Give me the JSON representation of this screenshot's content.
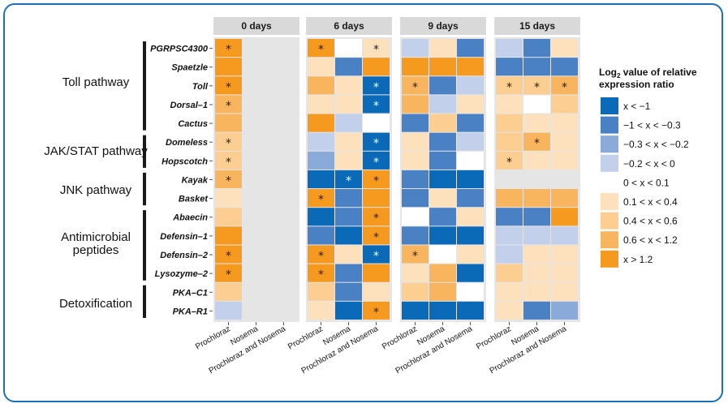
{
  "chart_data": {
    "type": "heatmap",
    "title": "",
    "panels": [
      "0 days",
      "6 days",
      "9 days",
      "15 days"
    ],
    "columns": [
      "Prochloraz",
      "Nosema",
      "Prochloraz and Nosema"
    ],
    "rows": [
      "PGRPSC4300",
      "Spaetzle",
      "Toll",
      "Dorsal–1",
      "Cactus",
      "Domeless",
      "Hopscotch",
      "Kayak",
      "Basket",
      "Abaecin",
      "Defensin–1",
      "Defensin–2",
      "Lysozyme–2",
      "PKA–C1",
      "PKA–R1"
    ],
    "groups": [
      {
        "label": "Toll pathway",
        "rows": [
          0,
          4
        ]
      },
      {
        "label": "JAK/STAT pathway",
        "rows": [
          5,
          6
        ]
      },
      {
        "label": "JNK pathway",
        "rows": [
          7,
          8
        ]
      },
      {
        "label": "Antimicrobial peptides",
        "rows": [
          9,
          12
        ]
      },
      {
        "label": "Detoxification",
        "rows": [
          13,
          14
        ]
      }
    ],
    "legend": {
      "title_prefix": "Log",
      "title_sub": "2",
      "title_rest": " value of relative",
      "title_line2": "expression ratio",
      "bins": [
        {
          "label": "x < −1",
          "color": "#0b6ab8"
        },
        {
          "label": "−1 < x < −0.3",
          "color": "#4a80c4"
        },
        {
          "label": "−0.3 < x < −0.2",
          "color": "#8aaad9"
        },
        {
          "label": "−0.2 < x < 0",
          "color": "#c3d0ec"
        },
        {
          "label": "0 < x < 0.1",
          "color": "#ffffff"
        },
        {
          "label": "0.1 < x < 0.4",
          "color": "#fde1bd"
        },
        {
          "label": "0.4 < x < 0.6",
          "color": "#fcce92"
        },
        {
          "label": "0.6 < x < 1.2",
          "color": "#f9b55e"
        },
        {
          "label": "x > 1.2",
          "color": "#f69a1f"
        }
      ]
    },
    "cells": [
      [
        [
          8,
          8,
          8,
          7,
          7,
          6,
          6,
          7,
          5,
          6,
          8,
          8,
          8,
          6,
          3
        ],
        [
          null,
          null,
          null,
          null,
          null,
          null,
          null,
          null,
          null,
          null,
          null,
          null,
          null,
          null,
          null
        ],
        [
          null,
          null,
          null,
          null,
          null,
          null,
          null,
          null,
          null,
          null,
          null,
          null,
          null,
          null,
          null
        ]
      ],
      [
        [
          8,
          5,
          7,
          5,
          8,
          3,
          2,
          0,
          8,
          0,
          1,
          8,
          8,
          6,
          5
        ],
        [
          4,
          1,
          5,
          5,
          3,
          5,
          5,
          0,
          1,
          1,
          0,
          5,
          1,
          1,
          0
        ],
        [
          5,
          8,
          0,
          0,
          4,
          0,
          0,
          8,
          8,
          8,
          8,
          0,
          8,
          5,
          8
        ]
      ],
      [
        [
          3,
          8,
          7,
          7,
          1,
          5,
          5,
          1,
          1,
          4,
          1,
          7,
          5,
          6,
          0
        ],
        [
          5,
          8,
          1,
          3,
          6,
          1,
          1,
          0,
          5,
          1,
          0,
          4,
          7,
          7,
          0
        ],
        [
          1,
          8,
          3,
          5,
          1,
          3,
          4,
          0,
          1,
          5,
          0,
          5,
          0,
          4,
          0
        ]
      ],
      [
        [
          3,
          1,
          6,
          5,
          6,
          6,
          6,
          null,
          7,
          1,
          3,
          3,
          6,
          5,
          5
        ],
        [
          1,
          1,
          6,
          4,
          5,
          7,
          5,
          null,
          7,
          1,
          3,
          5,
          5,
          5,
          1
        ],
        [
          5,
          1,
          7,
          6,
          5,
          5,
          5,
          null,
          7,
          8,
          3,
          5,
          5,
          5,
          2
        ]
      ]
    ],
    "significant": [
      [
        [
          0,
          2,
          3,
          5,
          6,
          7,
          11,
          12
        ],
        [],
        []
      ],
      [
        [
          0,
          8,
          11,
          12
        ],
        [
          7
        ],
        [
          0,
          2,
          3,
          5,
          6,
          7,
          9,
          10,
          11,
          14
        ]
      ],
      [
        [
          2,
          11
        ],
        [],
        []
      ],
      [
        [
          2,
          6
        ],
        [
          2,
          5
        ],
        [
          2
        ]
      ]
    ]
  }
}
